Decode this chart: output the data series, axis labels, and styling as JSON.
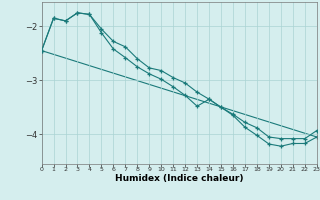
{
  "xlabel": "Humidex (Indice chaleur)",
  "x": [
    0,
    1,
    2,
    3,
    4,
    5,
    6,
    7,
    8,
    9,
    10,
    11,
    12,
    13,
    14,
    15,
    16,
    17,
    18,
    19,
    20,
    21,
    22,
    23
  ],
  "line1": [
    -2.45,
    -1.85,
    -1.9,
    -1.75,
    -1.78,
    -2.05,
    -2.28,
    -2.38,
    -2.6,
    -2.77,
    -2.82,
    -2.95,
    -3.05,
    -3.22,
    -3.35,
    -3.5,
    -3.63,
    -3.78,
    -3.88,
    -4.05,
    -4.08,
    -4.08,
    -4.08,
    -3.93
  ],
  "line2": [
    -2.45,
    -1.85,
    -1.9,
    -1.75,
    -1.78,
    -2.12,
    -2.42,
    -2.58,
    -2.75,
    -2.88,
    -2.98,
    -3.12,
    -3.28,
    -3.48,
    -3.35,
    -3.5,
    -3.65,
    -3.87,
    -4.02,
    -4.18,
    -4.22,
    -4.17,
    -4.17,
    -4.05
  ],
  "line3_x": [
    0,
    23
  ],
  "line3_y": [
    -2.45,
    -4.05
  ],
  "bg_color": "#d5eeee",
  "line_color": "#1a7a7a",
  "grid_color": "#aad4d4",
  "xlim": [
    0,
    23
  ],
  "ylim": [
    -4.55,
    -1.55
  ],
  "yticks": [
    -4,
    -3,
    -2
  ],
  "xticks": [
    0,
    1,
    2,
    3,
    4,
    5,
    6,
    7,
    8,
    9,
    10,
    11,
    12,
    13,
    14,
    15,
    16,
    17,
    18,
    19,
    20,
    21,
    22,
    23
  ]
}
